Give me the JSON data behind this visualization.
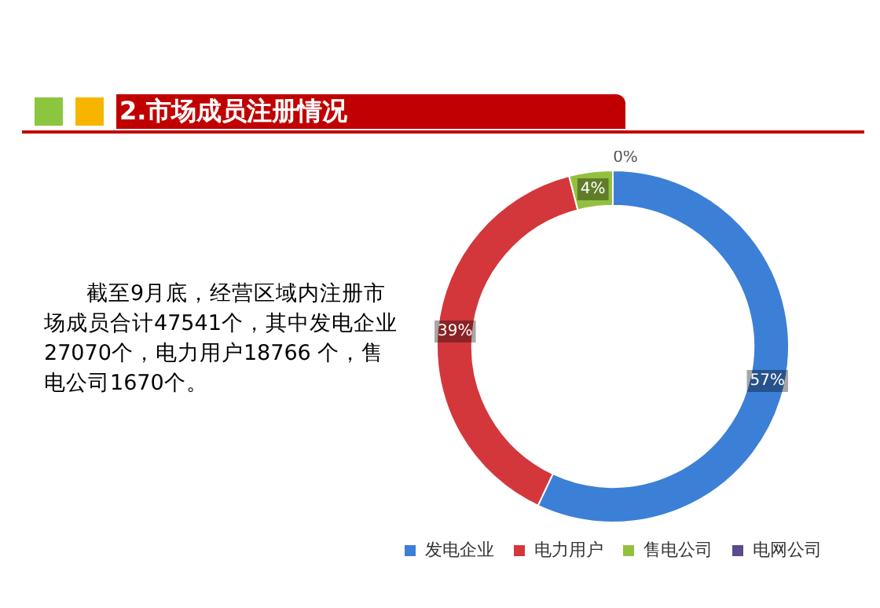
{
  "chart_data": {
    "type": "donut",
    "title": "2.市场成员注册情况",
    "categories": [
      "发电企业",
      "电力用户",
      "售电公司",
      "电网公司"
    ],
    "values": [
      57,
      39,
      4,
      0
    ],
    "colors": [
      "#3c7fd6",
      "#d4373b",
      "#93c13e",
      "#5a4b8c"
    ],
    "value_labels": [
      "57%",
      "39%",
      "4%",
      "0%"
    ],
    "legend": "bottom",
    "annotations": [
      "截至9月底，经营区域内注册市场成员合计47541个，其中发电企业27070个，电力用户18766 个，售电公司1670个。"
    ]
  }
}
